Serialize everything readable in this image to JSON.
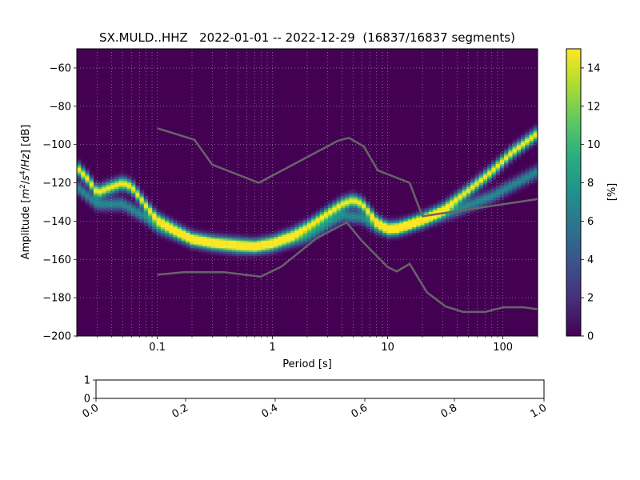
{
  "chart_data": [
    {
      "type": "heatmap",
      "title": "SX.MULD..HHZ   2022-01-01 -- 2022-12-29  (16837/16837 segments)",
      "xlabel": "Period [s]",
      "ylabel_parts": [
        "Amplitude [",
        "m",
        "2",
        "/",
        "s",
        "4",
        "/",
        "Hz",
        "] [dB]"
      ],
      "xscale": "log",
      "xlim": [
        0.02,
        200
      ],
      "ylim": [
        -200,
        -50
      ],
      "grid": true,
      "x_ticks": [
        {
          "value": 0.1,
          "label": "0.1"
        },
        {
          "value": 1,
          "label": "1"
        },
        {
          "value": 10,
          "label": "10"
        },
        {
          "value": 100,
          "label": "100"
        }
      ],
      "y_ticks": [
        {
          "value": -60,
          "label": "−60"
        },
        {
          "value": -80,
          "label": "−80"
        },
        {
          "value": -100,
          "label": "−100"
        },
        {
          "value": -120,
          "label": "−120"
        },
        {
          "value": -140,
          "label": "−140"
        },
        {
          "value": -160,
          "label": "−160"
        },
        {
          "value": -180,
          "label": "−180"
        },
        {
          "value": -200,
          "label": "−200"
        }
      ],
      "colormap": "viridis",
      "colorbar": {
        "label": "[%]",
        "range": [
          0,
          15
        ],
        "ticks": [
          {
            "value": 0,
            "label": "0"
          },
          {
            "value": 2,
            "label": "2"
          },
          {
            "value": 4,
            "label": "4"
          },
          {
            "value": 6,
            "label": "6"
          },
          {
            "value": 8,
            "label": "8"
          },
          {
            "value": 10,
            "label": "10"
          },
          {
            "value": 12,
            "label": "12"
          },
          {
            "value": 14,
            "label": "14"
          }
        ]
      },
      "density_ridges": [
        {
          "points": [
            [
              0.02,
              -112
            ],
            [
              0.025,
              -118
            ],
            [
              0.03,
              -125
            ],
            [
              0.04,
              -122
            ],
            [
              0.05,
              -120
            ],
            [
              0.06,
              -122
            ],
            [
              0.08,
              -132
            ],
            [
              0.1,
              -139
            ],
            [
              0.15,
              -145
            ],
            [
              0.2,
              -149
            ],
            [
              0.3,
              -151
            ],
            [
              0.5,
              -152
            ],
            [
              0.7,
              -153
            ],
            [
              1,
              -151
            ],
            [
              1.5,
              -147
            ],
            [
              2,
              -143
            ],
            [
              3,
              -136
            ],
            [
              4,
              -131
            ],
            [
              5,
              -129
            ],
            [
              6,
              -131
            ],
            [
              8,
              -140
            ],
            [
              10,
              -144
            ],
            [
              12,
              -144
            ],
            [
              15,
              -142
            ],
            [
              20,
              -139
            ],
            [
              30,
              -134
            ],
            [
              50,
              -124
            ],
            [
              80,
              -114
            ],
            [
              120,
              -104
            ],
            [
              200,
              -94
            ]
          ],
          "peak": 15
        },
        {
          "points": [
            [
              0.02,
              -122
            ],
            [
              0.03,
              -131
            ],
            [
              0.05,
              -131
            ],
            [
              0.08,
              -138
            ],
            [
              0.1,
              -143
            ],
            [
              0.2,
              -150
            ],
            [
              0.5,
              -154
            ],
            [
              1,
              -153
            ],
            [
              2,
              -148
            ],
            [
              4,
              -137
            ],
            [
              6,
              -138
            ],
            [
              8,
              -143
            ],
            [
              10,
              -144
            ],
            [
              15,
              -142
            ],
            [
              20,
              -140
            ],
            [
              40,
              -134
            ],
            [
              80,
              -127
            ],
            [
              200,
              -114
            ]
          ],
          "peak": 7
        }
      ],
      "series": [
        {
          "name": "",
          "color": "#666666",
          "x": [
            0.1,
            0.21,
            0.3,
            0.76,
            3.7,
            4.6,
            6.2,
            8.2,
            15.5,
            20,
            200
          ],
          "y": [
            -91.5,
            -97.5,
            -110.5,
            -120,
            -98,
            -96.5,
            -101,
            -113.5,
            -120,
            -137.5,
            -128.5
          ]
        },
        {
          "name": "",
          "color": "#666666",
          "x": [
            0.1,
            0.17,
            0.38,
            0.79,
            1.2,
            2.4,
            4.4,
            5.9,
            10,
            12,
            15.5,
            21.9,
            31.6,
            45,
            70,
            101,
            150,
            200
          ],
          "y": [
            -168,
            -166.7,
            -166.7,
            -169,
            -163.7,
            -149,
            -140.7,
            -150,
            -164,
            -166.3,
            -162.3,
            -177.2,
            -184.5,
            -187.4,
            -187.4,
            -185,
            -185,
            -186
          ]
        }
      ]
    },
    {
      "type": "line",
      "xlim": [
        0,
        1
      ],
      "ylim": [
        0,
        1
      ],
      "series": [],
      "x_ticks": [
        {
          "value": 0.0,
          "label": "0.0"
        },
        {
          "value": 0.2,
          "label": "0.2"
        },
        {
          "value": 0.4,
          "label": "0.4"
        },
        {
          "value": 0.6,
          "label": "0.6"
        },
        {
          "value": 0.8,
          "label": "0.8"
        },
        {
          "value": 1.0,
          "label": "1.0"
        }
      ],
      "y_ticks": [
        {
          "value": 0,
          "label": "0"
        },
        {
          "value": 1,
          "label": "1"
        }
      ]
    }
  ]
}
